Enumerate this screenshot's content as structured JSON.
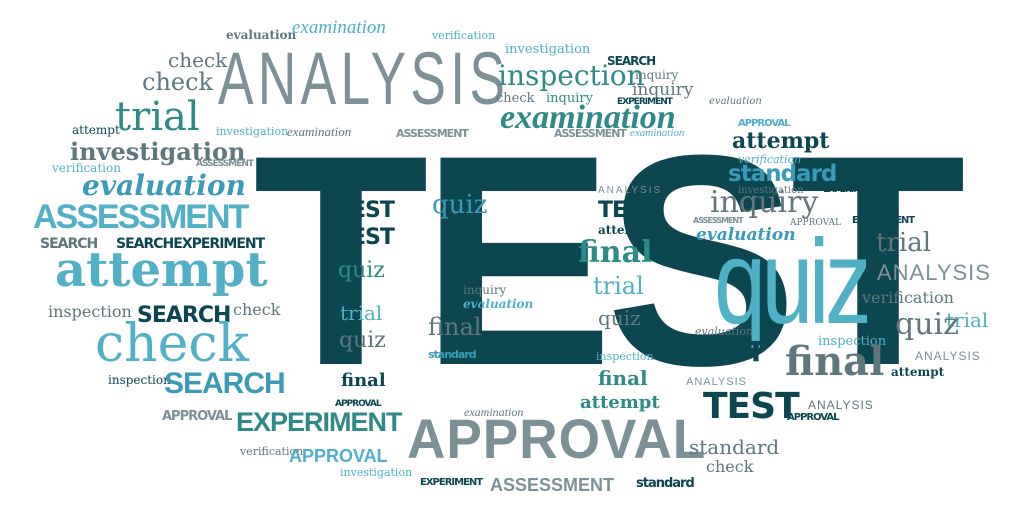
{
  "words": {
    "test_main": "TEST",
    "evaluation": "evaluation",
    "examination": "examination",
    "verification": "verification",
    "check": "check",
    "analysis": "ANALYSIS",
    "investigation": "investigation",
    "search_upper": "SEARCH",
    "inspection": "inspection",
    "inquiry": "inquiry",
    "trial": "trial",
    "experiment_upper": "EXPERIMENT",
    "approval_upper": "APPROVAL",
    "attempt": "attempt",
    "assessment_upper": "ASSESSMENT",
    "standard": "standard",
    "quiz": "quiz",
    "test_upper": "TEST",
    "final": "final",
    "search_experiment": "SEARCHEXPERIMENT"
  }
}
